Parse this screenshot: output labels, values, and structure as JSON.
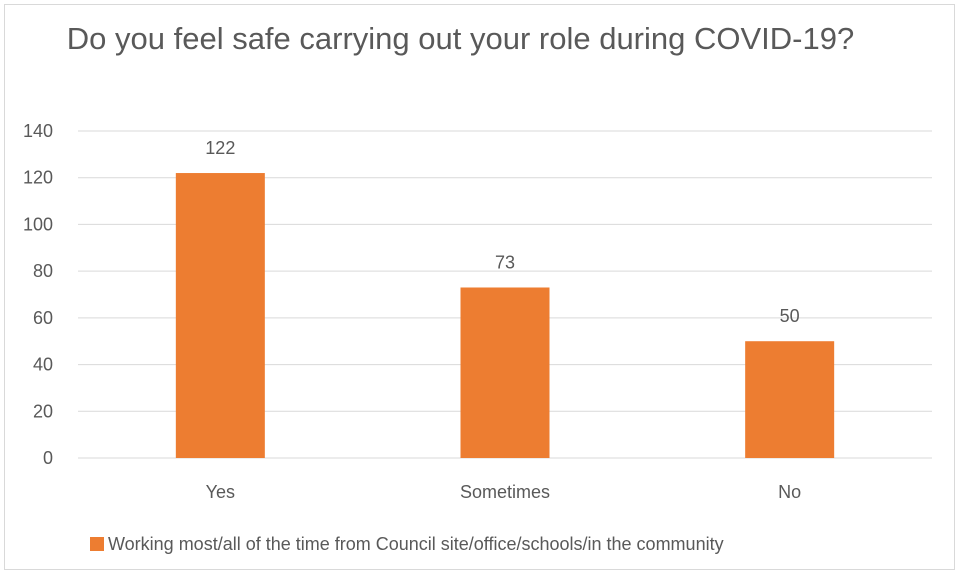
{
  "chart_data": {
    "type": "bar",
    "title": "Do you feel safe carrying out your role during COVID-19?",
    "categories": [
      "Yes",
      "Sometimes",
      "No"
    ],
    "series": [
      {
        "name": "Working most/all of the time from Council site/office/schools/in the community",
        "values": [
          122,
          73,
          50
        ],
        "color": "#ED7D31"
      }
    ],
    "ylim": [
      0,
      140
    ],
    "yticks": [
      0,
      20,
      40,
      60,
      80,
      100,
      120,
      140
    ],
    "grid": true,
    "legend_position": "bottom",
    "xlabel": "",
    "ylabel": ""
  }
}
